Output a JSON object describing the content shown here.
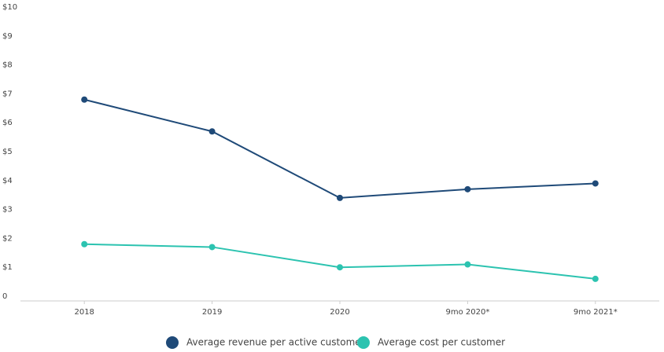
{
  "chart_data": {
    "type": "line",
    "categories": [
      "2018",
      "2019",
      "2020",
      "9mo 2020*",
      "9mo 2021*"
    ],
    "series": [
      {
        "name": "Average revenue per active customer",
        "color": "#1f4a78",
        "values": [
          6.8,
          5.7,
          3.4,
          3.7,
          3.9
        ]
      },
      {
        "name": "Average cost per customer",
        "color": "#2cc3b0",
        "values": [
          1.8,
          1.7,
          1.0,
          1.1,
          0.6
        ]
      }
    ],
    "ylim": [
      0,
      10
    ],
    "yticks": [
      0,
      {
        "value": 1,
        "label": "$1"
      },
      {
        "value": 2,
        "label": "$2"
      },
      {
        "value": 3,
        "label": "$3"
      },
      {
        "value": 4,
        "label": "$4"
      },
      {
        "value": 5,
        "label": "$5"
      },
      {
        "value": 6,
        "label": "$6"
      },
      {
        "value": 7,
        "label": "$7"
      },
      {
        "value": 8,
        "label": "$8"
      },
      {
        "value": 9,
        "label": "$9"
      },
      {
        "value": 10,
        "label": "$10"
      }
    ],
    "grid": false,
    "legend": "bottom"
  }
}
